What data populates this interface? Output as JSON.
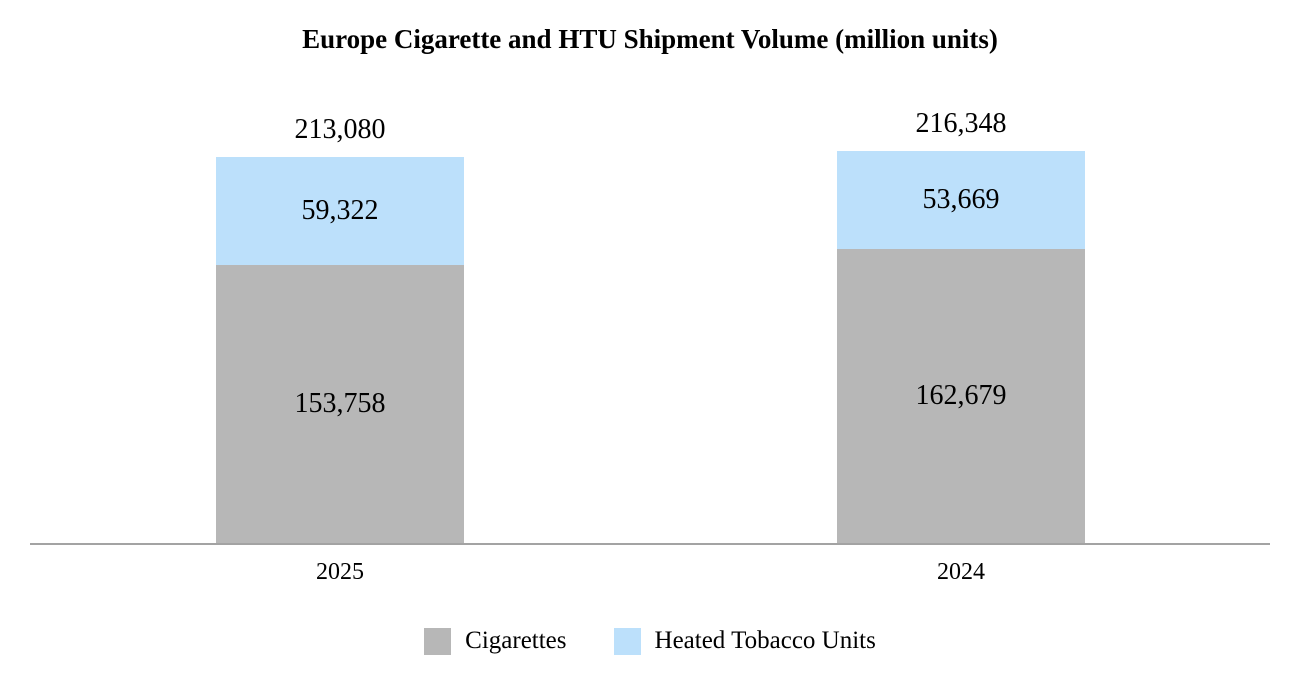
{
  "page": {
    "background": "#ffffff",
    "text_color": "#000000",
    "axis_line_color": "#a3a3a3"
  },
  "chart_data": {
    "type": "bar",
    "stacked": true,
    "title": "Europe Cigarette and HTU Shipment Volume (million units)",
    "categories": [
      "2025",
      "2024"
    ],
    "series": [
      {
        "name": "Cigarettes",
        "color": "#b7b7b7",
        "values": [
          153758,
          162679
        ],
        "labels": [
          "153,758",
          "162,679"
        ]
      },
      {
        "name": "Heated Tobacco Units",
        "color": "#bce0fb",
        "values": [
          59322,
          53669
        ],
        "labels": [
          "59,322",
          "53,669"
        ]
      }
    ],
    "totals": [
      213080,
      216348
    ],
    "total_labels": [
      "213,080",
      "216,348"
    ],
    "xlabel": "",
    "ylabel": "",
    "ylim": [
      0,
      216348
    ],
    "grid": false,
    "y_axis_shown": false,
    "legend_position": "bottom"
  }
}
